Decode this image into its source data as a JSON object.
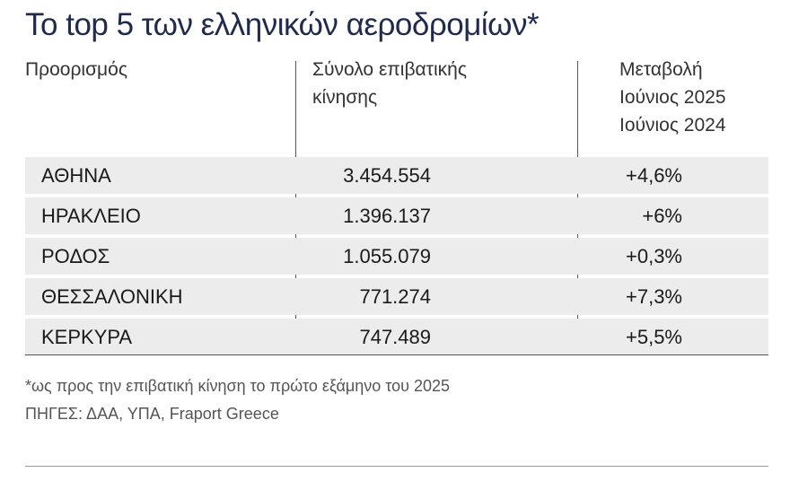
{
  "title": "Το top 5 των ελληνικών αεροδρομίων*",
  "headers": {
    "destination": "Προορισμός",
    "total_line1": "Σύνολο επιβατικής",
    "total_line2": "κίνησης",
    "change_line1": "Μεταβολή",
    "change_line2": "Ιούνιος 2025",
    "change_line3": "Ιούνιος 2024"
  },
  "rows": [
    {
      "name": "ΑΘΗΝΑ",
      "total": "3.454.554",
      "change": "+4,6%"
    },
    {
      "name": "ΗΡΑΚΛΕΙΟ",
      "total": "1.396.137",
      "change": "+6%"
    },
    {
      "name": "ΡΟΔΟΣ",
      "total": "1.055.079",
      "change": "+0,3%"
    },
    {
      "name": "ΘΕΣΣΑΛΟΝΙΚΗ",
      "total": "771.274",
      "change": "+7,3%"
    },
    {
      "name": "ΚΕΡΚΥΡΑ",
      "total": "747.489",
      "change": "+5,5%"
    }
  ],
  "footnote": "*ως προς την επιβατική κίνηση το πρώτο εξάμηνο του 2025",
  "sources": "ΠΗΓΕΣ: ΔΑΑ, ΥΠΑ, Fraport Greece"
}
